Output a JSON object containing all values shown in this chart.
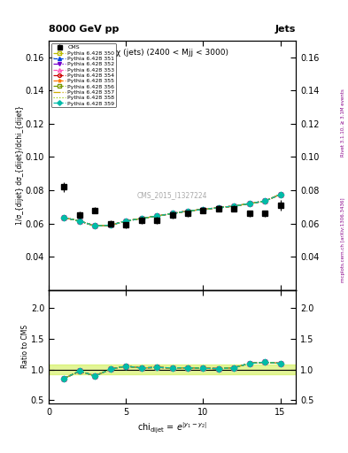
{
  "title_left": "8000 GeV pp",
  "title_right": "Jets",
  "panel_title": "χ (jets) (2400 < Mjj < 3000)",
  "ylabel_main": "1/σ_{dijet} dσ_{dijet}/dchi_{dijet}",
  "ylabel_ratio": "Ratio to CMS",
  "xlabel": "chi_{dijet} = e^{|y_1-y_2|}",
  "watermark": "CMS_2015_I1327224",
  "right_label1": "Rivet 3.1.10, ≥ 3.1M events",
  "right_label2": "mcplots.cern.ch [arXiv:1306.3436]",
  "xlim": [
    0,
    16
  ],
  "ylim_main": [
    0.02,
    0.17
  ],
  "ylim_ratio": [
    0.45,
    2.3
  ],
  "yticks_main": [
    0.04,
    0.06,
    0.08,
    0.1,
    0.12,
    0.14,
    0.16
  ],
  "yticks_ratio": [
    0.5,
    1.0,
    1.5,
    2.0
  ],
  "xticks": [
    0,
    5,
    10,
    15
  ],
  "cms_x": [
    1,
    2,
    3,
    4,
    5,
    6,
    7,
    8,
    9,
    10,
    11,
    12,
    13,
    14,
    15
  ],
  "cms_y": [
    0.082,
    0.065,
    0.068,
    0.06,
    0.059,
    0.062,
    0.062,
    0.065,
    0.066,
    0.068,
    0.069,
    0.069,
    0.066,
    0.066,
    0.071
  ],
  "cms_yerr": [
    0.003,
    0.002,
    0.002,
    0.002,
    0.002,
    0.002,
    0.002,
    0.002,
    0.002,
    0.002,
    0.002,
    0.002,
    0.002,
    0.002,
    0.003
  ],
  "series": [
    {
      "label": "Pythia 6.428 350",
      "color": "#bbbb00",
      "linestyle": "--",
      "marker": "s",
      "fillstyle": "none",
      "x": [
        1,
        2,
        3,
        4,
        5,
        6,
        7,
        8,
        9,
        10,
        11,
        12,
        13,
        14,
        15
      ],
      "y": [
        0.0635,
        0.0615,
        0.0585,
        0.059,
        0.0615,
        0.063,
        0.0645,
        0.066,
        0.0675,
        0.0685,
        0.0695,
        0.0705,
        0.072,
        0.0735,
        0.0775
      ],
      "ratio": [
        0.85,
        0.97,
        0.895,
        1.005,
        1.055,
        1.025,
        1.035,
        1.025,
        1.03,
        1.02,
        1.015,
        1.03,
        1.1,
        1.12,
        1.1
      ]
    },
    {
      "label": "Pythia 6.428 351",
      "color": "#0044dd",
      "linestyle": "--",
      "marker": "^",
      "fillstyle": "full",
      "x": [
        1,
        2,
        3,
        4,
        5,
        6,
        7,
        8,
        9,
        10,
        11,
        12,
        13,
        14,
        15
      ],
      "y": [
        0.0635,
        0.0615,
        0.0585,
        0.059,
        0.0615,
        0.063,
        0.0645,
        0.066,
        0.0675,
        0.0685,
        0.0695,
        0.0705,
        0.072,
        0.0735,
        0.0775
      ],
      "ratio": [
        0.855,
        0.975,
        0.895,
        1.005,
        1.055,
        1.025,
        1.035,
        1.025,
        1.03,
        1.02,
        1.015,
        1.03,
        1.1,
        1.12,
        1.1
      ]
    },
    {
      "label": "Pythia 6.428 352",
      "color": "#7700cc",
      "linestyle": "-.",
      "marker": "v",
      "fillstyle": "full",
      "x": [
        1,
        2,
        3,
        4,
        5,
        6,
        7,
        8,
        9,
        10,
        11,
        12,
        13,
        14,
        15
      ],
      "y": [
        0.0635,
        0.0615,
        0.0585,
        0.059,
        0.0615,
        0.063,
        0.0645,
        0.066,
        0.0675,
        0.0685,
        0.0695,
        0.0705,
        0.072,
        0.0735,
        0.0775
      ],
      "ratio": [
        0.855,
        0.975,
        0.895,
        1.005,
        1.055,
        1.025,
        1.035,
        1.025,
        1.03,
        1.02,
        1.015,
        1.03,
        1.1,
        1.12,
        1.1
      ]
    },
    {
      "label": "Pythia 6.428 353",
      "color": "#ff55bb",
      "linestyle": "--",
      "marker": "^",
      "fillstyle": "none",
      "x": [
        1,
        2,
        3,
        4,
        5,
        6,
        7,
        8,
        9,
        10,
        11,
        12,
        13,
        14,
        15
      ],
      "y": [
        0.0635,
        0.0615,
        0.0585,
        0.059,
        0.0615,
        0.063,
        0.0645,
        0.066,
        0.0675,
        0.0685,
        0.0695,
        0.0705,
        0.072,
        0.0735,
        0.0775
      ],
      "ratio": [
        0.855,
        0.975,
        0.895,
        1.005,
        1.055,
        1.025,
        1.035,
        1.025,
        1.03,
        1.02,
        1.015,
        1.03,
        1.1,
        1.12,
        1.1
      ]
    },
    {
      "label": "Pythia 6.428 354",
      "color": "#cc0000",
      "linestyle": "--",
      "marker": "o",
      "fillstyle": "none",
      "x": [
        1,
        2,
        3,
        4,
        5,
        6,
        7,
        8,
        9,
        10,
        11,
        12,
        13,
        14,
        15
      ],
      "y": [
        0.0635,
        0.0615,
        0.0585,
        0.059,
        0.0615,
        0.063,
        0.0645,
        0.066,
        0.0675,
        0.0685,
        0.0695,
        0.0705,
        0.072,
        0.0735,
        0.0775
      ],
      "ratio": [
        0.855,
        0.975,
        0.895,
        1.005,
        1.055,
        1.025,
        1.035,
        1.025,
        1.03,
        1.02,
        1.015,
        1.03,
        1.1,
        1.12,
        1.1
      ]
    },
    {
      "label": "Pythia 6.428 355",
      "color": "#ff7700",
      "linestyle": "--",
      "marker": "*",
      "fillstyle": "full",
      "x": [
        1,
        2,
        3,
        4,
        5,
        6,
        7,
        8,
        9,
        10,
        11,
        12,
        13,
        14,
        15
      ],
      "y": [
        0.0635,
        0.0615,
        0.0585,
        0.059,
        0.0615,
        0.063,
        0.0645,
        0.066,
        0.0675,
        0.0685,
        0.0695,
        0.0705,
        0.072,
        0.0735,
        0.0775
      ],
      "ratio": [
        0.855,
        0.975,
        0.895,
        1.005,
        1.055,
        1.025,
        1.035,
        1.025,
        1.03,
        1.02,
        1.015,
        1.03,
        1.1,
        1.12,
        1.1
      ]
    },
    {
      "label": "Pythia 6.428 356",
      "color": "#779900",
      "linestyle": "--",
      "marker": "s",
      "fillstyle": "none",
      "x": [
        1,
        2,
        3,
        4,
        5,
        6,
        7,
        8,
        9,
        10,
        11,
        12,
        13,
        14,
        15
      ],
      "y": [
        0.0635,
        0.0615,
        0.0585,
        0.059,
        0.0615,
        0.063,
        0.0645,
        0.066,
        0.0675,
        0.0685,
        0.0695,
        0.0705,
        0.072,
        0.0735,
        0.0775
      ],
      "ratio": [
        0.855,
        0.975,
        0.895,
        1.005,
        1.055,
        1.025,
        1.035,
        1.025,
        1.03,
        1.02,
        1.015,
        1.03,
        1.1,
        1.12,
        1.1
      ]
    },
    {
      "label": "Pythia 6.428 357",
      "color": "#ccaa00",
      "linestyle": "-.",
      "marker": "None",
      "fillstyle": "none",
      "x": [
        1,
        2,
        3,
        4,
        5,
        6,
        7,
        8,
        9,
        10,
        11,
        12,
        13,
        14,
        15
      ],
      "y": [
        0.0635,
        0.0615,
        0.0585,
        0.059,
        0.0615,
        0.063,
        0.0645,
        0.066,
        0.0675,
        0.0685,
        0.0695,
        0.0705,
        0.072,
        0.0735,
        0.0775
      ],
      "ratio": [
        0.855,
        0.975,
        0.895,
        1.005,
        1.055,
        1.025,
        1.035,
        1.025,
        1.03,
        1.02,
        1.015,
        1.03,
        1.1,
        1.12,
        1.1
      ]
    },
    {
      "label": "Pythia 6.428 358",
      "color": "#99cc00",
      "linestyle": ":",
      "marker": "None",
      "fillstyle": "none",
      "x": [
        1,
        2,
        3,
        4,
        5,
        6,
        7,
        8,
        9,
        10,
        11,
        12,
        13,
        14,
        15
      ],
      "y": [
        0.0635,
        0.0615,
        0.0585,
        0.059,
        0.0615,
        0.063,
        0.0645,
        0.066,
        0.0675,
        0.0685,
        0.0695,
        0.0705,
        0.072,
        0.0735,
        0.0775
      ],
      "ratio": [
        0.855,
        0.975,
        0.895,
        1.005,
        1.055,
        1.025,
        1.035,
        1.025,
        1.03,
        1.02,
        1.015,
        1.03,
        1.1,
        1.12,
        1.1
      ]
    },
    {
      "label": "Pythia 6.428 359",
      "color": "#00bbaa",
      "linestyle": "--",
      "marker": "D",
      "fillstyle": "full",
      "x": [
        1,
        2,
        3,
        4,
        5,
        6,
        7,
        8,
        9,
        10,
        11,
        12,
        13,
        14,
        15
      ],
      "y": [
        0.0635,
        0.0615,
        0.0585,
        0.059,
        0.0615,
        0.063,
        0.0645,
        0.066,
        0.0675,
        0.0685,
        0.0695,
        0.0705,
        0.072,
        0.0735,
        0.0775
      ],
      "ratio": [
        0.855,
        0.975,
        0.895,
        1.005,
        1.055,
        1.025,
        1.035,
        1.025,
        1.03,
        1.02,
        1.015,
        1.03,
        1.1,
        1.12,
        1.1
      ]
    }
  ]
}
